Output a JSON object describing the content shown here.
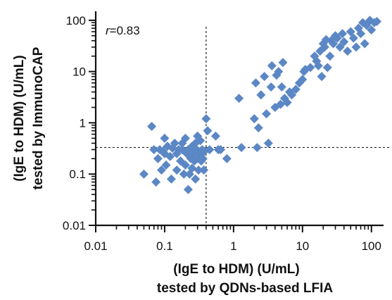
{
  "chart_data": {
    "type": "scatter",
    "x_scale": "log",
    "y_scale": "log",
    "xlim": [
      0.01,
      150
    ],
    "ylim": [
      0.01,
      150
    ],
    "x_ticks": [
      "0.01",
      "0.1",
      "1",
      "10",
      "100"
    ],
    "y_ticks": [
      "0.01",
      "0.1",
      "1",
      "10",
      "100"
    ],
    "x_tick_values": [
      0.01,
      0.1,
      1,
      10,
      100
    ],
    "y_tick_values": [
      0.01,
      0.1,
      1,
      10,
      100
    ],
    "xlabel_line1": "(IgE to HDM) (U/mL)",
    "xlabel_line2": "tested by QDNs-based LFIA",
    "ylabel_line1": "(IgE to HDM) (U/mL)",
    "ylabel_line2": "tested by ImmunoCAP",
    "annotation": {
      "italic": "r",
      "rest": "=0.83"
    },
    "cutoff_x": 0.4,
    "cutoff_y": 0.33,
    "marker_color": "#5b87c5",
    "points": [
      [
        0.05,
        0.1
      ],
      [
        0.065,
        0.85
      ],
      [
        0.07,
        0.3
      ],
      [
        0.075,
        0.07
      ],
      [
        0.08,
        0.2
      ],
      [
        0.085,
        0.3
      ],
      [
        0.09,
        0.12
      ],
      [
        0.095,
        0.28
      ],
      [
        0.1,
        0.5
      ],
      [
        0.1,
        0.25
      ],
      [
        0.105,
        0.15
      ],
      [
        0.11,
        0.35
      ],
      [
        0.12,
        0.22
      ],
      [
        0.125,
        0.08
      ],
      [
        0.13,
        0.32
      ],
      [
        0.14,
        0.4
      ],
      [
        0.15,
        0.25
      ],
      [
        0.15,
        0.12
      ],
      [
        0.16,
        0.3
      ],
      [
        0.17,
        0.18
      ],
      [
        0.18,
        0.3
      ],
      [
        0.18,
        0.4
      ],
      [
        0.19,
        0.1
      ],
      [
        0.2,
        0.5
      ],
      [
        0.2,
        0.15
      ],
      [
        0.21,
        0.25
      ],
      [
        0.22,
        0.3
      ],
      [
        0.22,
        0.05
      ],
      [
        0.23,
        0.1
      ],
      [
        0.24,
        0.2
      ],
      [
        0.25,
        0.35
      ],
      [
        0.25,
        0.13
      ],
      [
        0.26,
        0.25
      ],
      [
        0.27,
        0.18
      ],
      [
        0.28,
        0.4
      ],
      [
        0.28,
        0.08
      ],
      [
        0.29,
        0.3
      ],
      [
        0.3,
        0.2
      ],
      [
        0.3,
        0.55
      ],
      [
        0.31,
        0.12
      ],
      [
        0.32,
        0.25
      ],
      [
        0.33,
        0.45
      ],
      [
        0.34,
        0.18
      ],
      [
        0.35,
        0.3
      ],
      [
        0.36,
        0.2
      ],
      [
        0.37,
        0.12
      ],
      [
        0.38,
        0.28
      ],
      [
        0.4,
        1.2
      ],
      [
        0.42,
        0.7
      ],
      [
        0.45,
        0.3
      ],
      [
        0.55,
        0.55
      ],
      [
        0.6,
        0.3
      ],
      [
        0.65,
        0.3
      ],
      [
        0.8,
        0.2
      ],
      [
        1.2,
        3
      ],
      [
        1.3,
        0.33
      ],
      [
        2,
        1.2
      ],
      [
        2.1,
        6
      ],
      [
        2.2,
        0.33
      ],
      [
        2.3,
        0.8
      ],
      [
        2.5,
        3.5
      ],
      [
        2.8,
        8
      ],
      [
        3,
        1.5
      ],
      [
        3.2,
        0.4
      ],
      [
        3.5,
        5
      ],
      [
        3.6,
        13
      ],
      [
        4,
        2
      ],
      [
        4.2,
        8.5
      ],
      [
        4.5,
        10
      ],
      [
        4.8,
        2.3
      ],
      [
        5,
        5
      ],
      [
        5.2,
        15
      ],
      [
        5.5,
        3
      ],
      [
        6,
        2.5
      ],
      [
        6.5,
        4
      ],
      [
        7,
        3.5
      ],
      [
        8,
        4.5
      ],
      [
        9,
        6
      ],
      [
        10,
        7
      ],
      [
        10.5,
        10
      ],
      [
        11,
        11
      ],
      [
        13,
        12
      ],
      [
        15,
        20
      ],
      [
        16,
        16
      ],
      [
        17,
        13
      ],
      [
        18,
        25
      ],
      [
        19,
        8
      ],
      [
        20,
        35
      ],
      [
        21,
        30
      ],
      [
        22,
        42
      ],
      [
        23,
        12
      ],
      [
        25,
        20
      ],
      [
        26,
        40
      ],
      [
        28,
        35
      ],
      [
        30,
        50
      ],
      [
        32,
        45
      ],
      [
        35,
        30
      ],
      [
        38,
        55
      ],
      [
        40,
        38
      ],
      [
        45,
        25
      ],
      [
        50,
        60
      ],
      [
        55,
        45
      ],
      [
        60,
        30
      ],
      [
        65,
        70
      ],
      [
        70,
        55
      ],
      [
        75,
        90
      ],
      [
        80,
        35
      ],
      [
        85,
        80
      ],
      [
        95,
        100
      ],
      [
        100,
        65
      ],
      [
        110,
        90
      ],
      [
        120,
        95
      ]
    ]
  }
}
